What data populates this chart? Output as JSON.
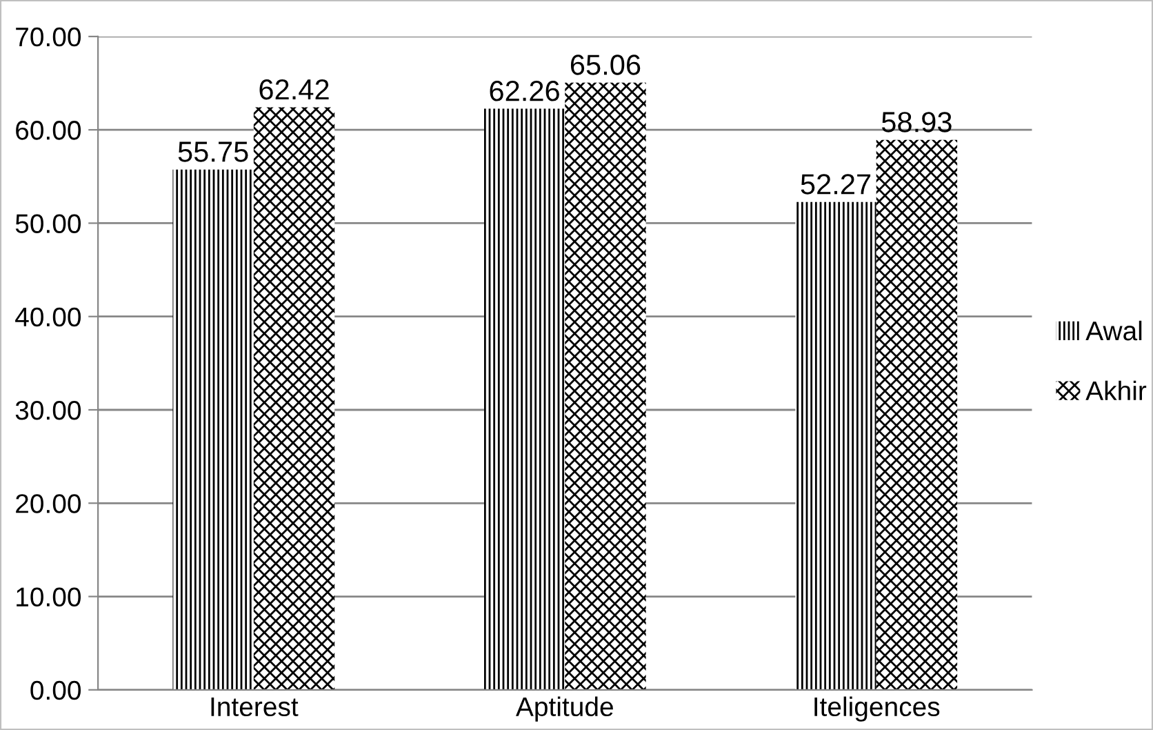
{
  "chart_data": {
    "type": "bar",
    "categories": [
      "Interest",
      "Aptitude",
      "Iteligences"
    ],
    "series": [
      {
        "name": "Awal",
        "color": "#000000",
        "values": [
          55.75,
          62.26,
          52.27
        ]
      },
      {
        "name": "Akhir",
        "color": "#000000",
        "values": [
          62.42,
          65.06,
          58.93
        ]
      }
    ],
    "ylim": [
      0,
      70
    ],
    "yticks": [
      {
        "value": 0,
        "label": "0.00"
      },
      {
        "value": 10,
        "label": "10.00"
      },
      {
        "value": 20,
        "label": "20.00"
      },
      {
        "value": 30,
        "label": "30.00"
      },
      {
        "value": 40,
        "label": "40.00"
      },
      {
        "value": 50,
        "label": "50.00"
      },
      {
        "value": 60,
        "label": "60.00"
      },
      {
        "value": 70,
        "label": "70.00"
      }
    ],
    "grid": "y",
    "legend": "right",
    "data_labels": true
  }
}
